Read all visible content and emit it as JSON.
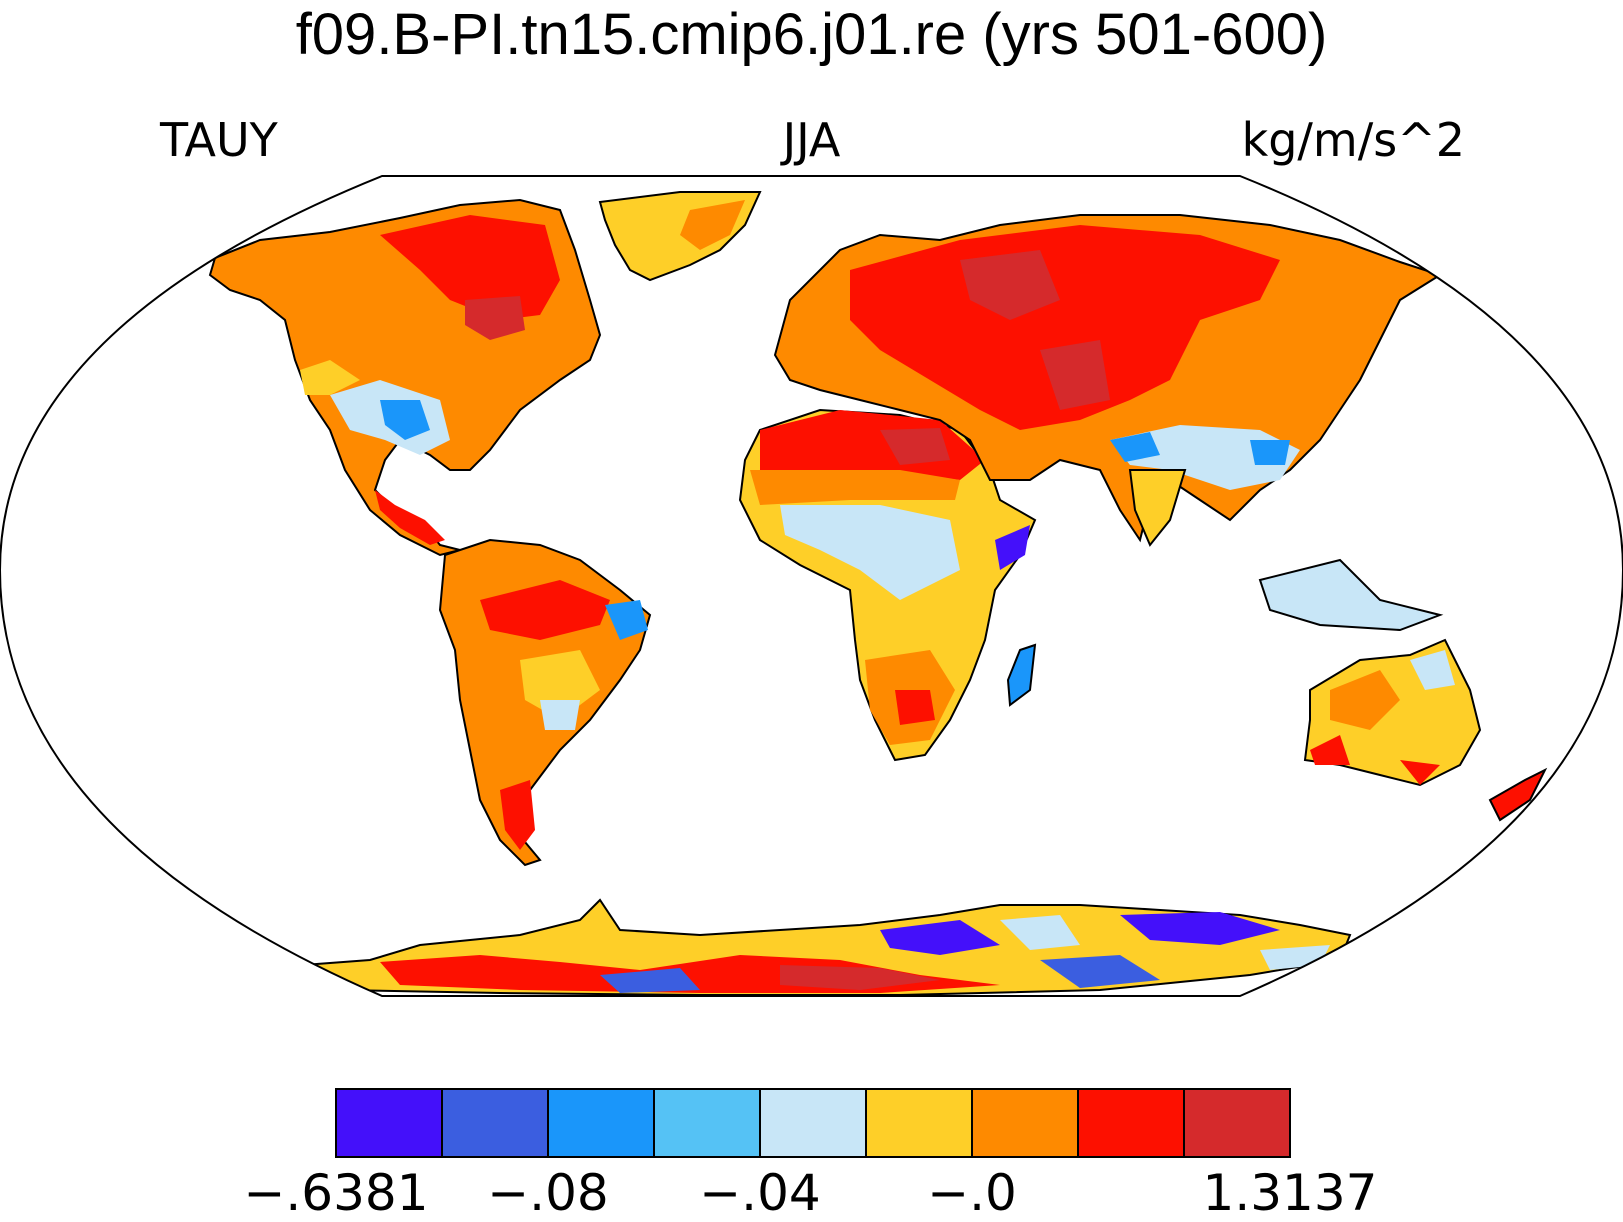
{
  "header": {
    "title": "f09.B-PI.tn15.cmip6.j01.re (yrs 501-600)",
    "left_label": "TAUY",
    "center_label": "JJA",
    "right_label": "kg/m/s^2"
  },
  "map": {
    "projection": "robinson",
    "variable": "TAUY",
    "season": "JJA"
  },
  "colorbar": {
    "colors": [
      "#4410fa",
      "#3b5ee0",
      "#1a96fa",
      "#55c2f5",
      "#c8e6f7",
      "#fecf28",
      "#fe8a00",
      "#fd1000",
      "#d52a2c"
    ],
    "labels": [
      "−.6381",
      "−.08",
      "−.04",
      "−.0",
      "1.3137"
    ]
  }
}
